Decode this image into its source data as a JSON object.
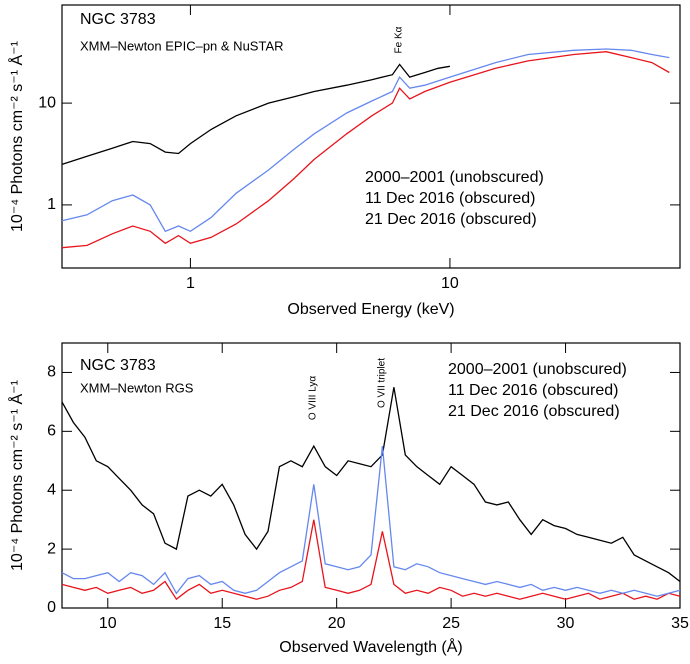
{
  "chart_data": [
    {
      "type": "line",
      "xscale": "log",
      "yscale": "log",
      "xlabel": "Observed Energy (keV)",
      "ylabel": "10⁻⁴ Photons cm⁻² s⁻¹ Å⁻¹",
      "annotations": [
        "NGC 3783",
        "XMM–Newton EPIC–pn & NuSTAR",
        "Fe Kα"
      ],
      "legend": "center right",
      "xlim": [
        0.32,
        77
      ],
      "ylim": [
        0.24,
        92
      ],
      "xticks": [
        1,
        10
      ],
      "yticks": [
        1,
        10
      ],
      "series": [
        {
          "name": "2000–2001 (unobscured)",
          "color": "#000000",
          "x": [
            0.32,
            0.4,
            0.5,
            0.6,
            0.7,
            0.8,
            0.9,
            1.0,
            1.2,
            1.5,
            2,
            2.5,
            3,
            4,
            5,
            6,
            6.4,
            7,
            8,
            9,
            10
          ],
          "values": [
            2.5,
            3.0,
            3.6,
            4.2,
            4.0,
            3.3,
            3.2,
            4.0,
            5.5,
            7.5,
            10,
            11.5,
            13,
            15,
            17,
            19,
            24,
            18,
            20,
            22,
            23
          ]
        },
        {
          "name": "11 Dec 2016 (obscured)",
          "color": "#e8141c",
          "x": [
            0.32,
            0.4,
            0.5,
            0.6,
            0.7,
            0.8,
            0.9,
            1.0,
            1.2,
            1.5,
            2,
            2.5,
            3,
            4,
            5,
            6,
            6.4,
            7,
            8,
            10,
            15,
            20,
            30,
            40,
            50,
            60,
            70
          ],
          "values": [
            0.38,
            0.4,
            0.52,
            0.62,
            0.55,
            0.42,
            0.5,
            0.42,
            0.48,
            0.65,
            1.1,
            1.8,
            2.8,
            5.0,
            7.5,
            10,
            14,
            11,
            13,
            16,
            22,
            26,
            30,
            32,
            28,
            25,
            20
          ]
        },
        {
          "name": "21 Dec 2016 (obscured)",
          "color": "#6688ee",
          "x": [
            0.32,
            0.4,
            0.5,
            0.6,
            0.7,
            0.8,
            0.9,
            1.0,
            1.2,
            1.5,
            2,
            2.5,
            3,
            4,
            5,
            6,
            6.4,
            7,
            8,
            10,
            15,
            20,
            30,
            40,
            50,
            60,
            70
          ],
          "values": [
            0.7,
            0.8,
            1.1,
            1.25,
            1.0,
            0.55,
            0.62,
            0.55,
            0.75,
            1.3,
            2.2,
            3.5,
            5,
            8,
            10.5,
            13,
            18,
            14,
            15,
            18,
            25,
            30,
            33,
            34,
            33,
            30,
            28
          ]
        }
      ]
    },
    {
      "type": "line",
      "xscale": "linear",
      "yscale": "linear",
      "xlabel": "Observed Wavelength (Å)",
      "ylabel": "10⁻⁴ Photons cm⁻² s⁻¹ Å⁻¹",
      "annotations": [
        "NGC 3783",
        "XMM–Newton RGS",
        "O VIII Lyα",
        "O VII triplet"
      ],
      "legend": "upper right",
      "xlim": [
        8,
        35
      ],
      "ylim": [
        0,
        9
      ],
      "xticks": [
        10,
        15,
        20,
        25,
        30,
        35
      ],
      "yticks": [
        0,
        2,
        4,
        6,
        8
      ],
      "x": [
        8,
        8.5,
        9,
        9.5,
        10,
        10.5,
        11,
        11.5,
        12,
        12.5,
        13,
        13.5,
        14,
        14.5,
        15,
        15.5,
        16,
        16.5,
        17,
        17.5,
        18,
        18.5,
        19,
        19.5,
        20,
        20.5,
        21,
        21.5,
        22,
        22.5,
        23,
        23.5,
        24,
        24.5,
        25,
        25.5,
        26,
        26.5,
        27,
        27.5,
        28,
        28.5,
        29,
        29.5,
        30,
        30.5,
        31,
        31.5,
        32,
        32.5,
        33,
        33.5,
        34,
        34.5,
        35
      ],
      "series": [
        {
          "name": "2000–2001 (unobscured)",
          "color": "#000000",
          "values": [
            7.0,
            6.3,
            5.8,
            5.0,
            4.8,
            4.4,
            4.0,
            3.5,
            3.2,
            2.2,
            2.0,
            3.8,
            4.0,
            3.8,
            4.2,
            3.5,
            2.5,
            2.0,
            2.6,
            4.8,
            5.0,
            4.8,
            5.5,
            4.8,
            4.5,
            5.0,
            4.9,
            4.8,
            5.2,
            7.5,
            5.2,
            4.8,
            4.5,
            4.2,
            4.8,
            4.5,
            4.2,
            3.6,
            3.5,
            3.6,
            3.0,
            2.5,
            3.0,
            2.8,
            2.7,
            2.5,
            2.4,
            2.3,
            2.2,
            2.4,
            1.8,
            1.6,
            1.4,
            1.2,
            0.9
          ]
        },
        {
          "name": "11 Dec 2016 (obscured)",
          "color": "#e8141c",
          "values": [
            0.8,
            0.7,
            0.6,
            0.7,
            0.5,
            0.6,
            0.7,
            0.5,
            0.6,
            0.9,
            0.3,
            0.6,
            0.8,
            0.5,
            0.6,
            0.5,
            0.4,
            0.3,
            0.4,
            0.6,
            0.7,
            0.9,
            3.0,
            0.7,
            0.6,
            0.5,
            0.6,
            0.8,
            2.6,
            0.8,
            0.5,
            0.6,
            0.5,
            0.7,
            0.6,
            0.4,
            0.5,
            0.4,
            0.5,
            0.4,
            0.3,
            0.4,
            0.5,
            0.4,
            0.3,
            0.4,
            0.5,
            0.3,
            0.4,
            0.5,
            0.3,
            0.4,
            0.3,
            0.5,
            0.4
          ]
        },
        {
          "name": "21 Dec 2016 (obscured)",
          "color": "#6688ee",
          "values": [
            1.2,
            1.0,
            1.0,
            1.1,
            1.2,
            0.9,
            1.2,
            1.1,
            0.8,
            1.2,
            0.5,
            1.0,
            1.1,
            0.8,
            0.9,
            0.6,
            0.5,
            0.6,
            0.9,
            1.2,
            1.4,
            1.6,
            4.2,
            1.5,
            1.4,
            1.3,
            1.4,
            1.8,
            5.5,
            1.4,
            1.3,
            1.5,
            1.4,
            1.2,
            1.1,
            1.0,
            0.9,
            0.8,
            0.9,
            0.8,
            0.7,
            0.8,
            0.6,
            0.7,
            0.6,
            0.7,
            0.6,
            0.5,
            0.6,
            0.5,
            0.6,
            0.5,
            0.4,
            0.5,
            0.6
          ]
        }
      ]
    }
  ]
}
